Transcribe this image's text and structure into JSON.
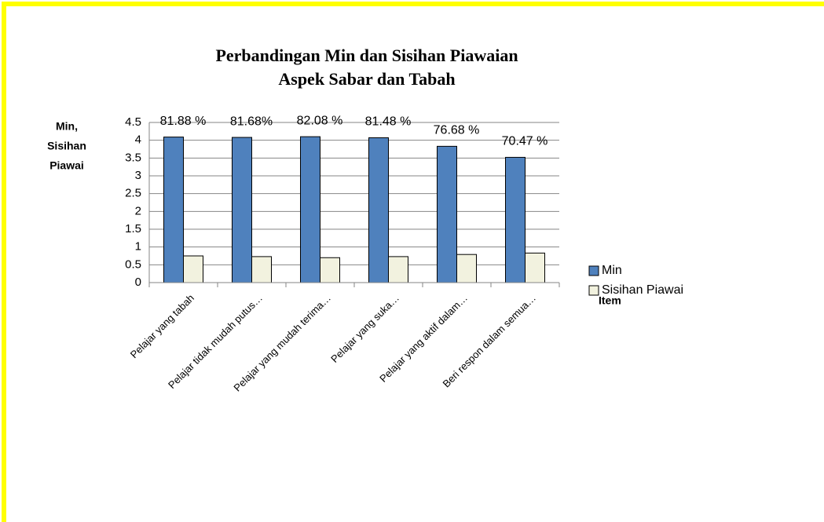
{
  "chart_data": {
    "type": "bar",
    "title": [
      "Perbandingan Min dan Sisihan Piawaian",
      "Aspek Sabar dan Tabah"
    ],
    "y_label": [
      "Min,",
      "Sisihan",
      "Piawai"
    ],
    "x_label": "Item",
    "categories": [
      "Pelajar yang tabah",
      "Pelajar tidak mudah putus…",
      "Pelajar yang mudah terima…",
      "Pelajar yang suka…",
      "Pelajar yang aktif dalam…",
      "Beri respon dalam semua…"
    ],
    "series": [
      {
        "name": "Min",
        "color": "#4f81bd",
        "values": [
          4.09,
          4.08,
          4.1,
          4.07,
          3.83,
          3.52
        ]
      },
      {
        "name": "Sisihan Piawai",
        "color": "#f2f2df",
        "values": [
          0.75,
          0.73,
          0.7,
          0.73,
          0.79,
          0.83
        ]
      }
    ],
    "annotations": [
      "81.88 %",
      "81.68%",
      "82.08 %",
      "81.48 %",
      "76.68 %",
      "70.47 %"
    ],
    "ylim": [
      0,
      4.5
    ],
    "yticks": [
      0,
      0.5,
      1,
      1.5,
      2,
      2.5,
      3,
      3.5,
      4,
      4.5
    ],
    "grid": true,
    "legend": "right"
  }
}
